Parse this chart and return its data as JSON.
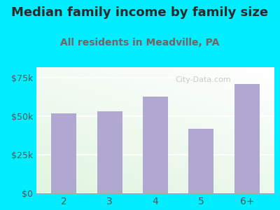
{
  "title": "Median family income by family size",
  "subtitle": "All residents in Meadville, PA",
  "categories": [
    "2",
    "3",
    "4",
    "5",
    "6+"
  ],
  "values": [
    52000,
    53500,
    63000,
    42000,
    71000
  ],
  "bar_color": "#b0a8d0",
  "background_outer": "#00eeff",
  "title_color": "#2a2a2a",
  "subtitle_color": "#7a6060",
  "tick_color": "#555555",
  "yticks": [
    0,
    25000,
    50000,
    75000
  ],
  "ytick_labels": [
    "$0",
    "$25k",
    "$50k",
    "$75k"
  ],
  "ylim": [
    0,
    82000
  ],
  "watermark": "City-Data.com",
  "title_fontsize": 13,
  "subtitle_fontsize": 10
}
